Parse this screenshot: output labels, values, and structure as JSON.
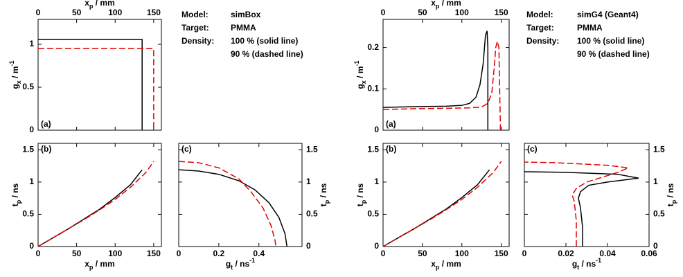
{
  "chart_data": [
    {
      "type": "line",
      "label": "(a)",
      "label_corner": "lower left",
      "xaxis_side": "top",
      "yaxis_side": "left",
      "xlabel": {
        "base": "x",
        "sub": "p",
        "rest": " / mm"
      },
      "ylabel": {
        "base": "g",
        "sub": "x",
        "rest": " / m",
        "sup": "-1"
      },
      "xlim": [
        0,
        160
      ],
      "xticks": [
        0,
        50,
        100,
        150
      ],
      "ylim": [
        0,
        1.29
      ],
      "yticks": [
        0,
        0.5,
        1
      ],
      "series": [
        {
          "color": "#000000",
          "dashed": false,
          "x": [
            0,
            135,
            135
          ],
          "values": [
            1.056,
            1.056,
            0
          ]
        },
        {
          "color": "#e00000",
          "dashed": true,
          "x": [
            0,
            150,
            150
          ],
          "values": [
            0.95,
            0.95,
            0
          ]
        }
      ]
    },
    {
      "type": "line",
      "label": "(b)",
      "label_corner": "upper left",
      "xaxis_side": "bottom",
      "yaxis_side": "left",
      "xlabel": {
        "base": "x",
        "sub": "p",
        "rest": " / mm"
      },
      "ylabel": {
        "base": "t",
        "sub": "p",
        "rest": " / ns"
      },
      "xlim": [
        0,
        160
      ],
      "xticks": [
        0,
        50,
        100,
        150
      ],
      "ylim": [
        0,
        1.6
      ],
      "yticks": [
        0,
        0.5,
        1,
        1.5
      ],
      "series": [
        {
          "color": "#000000",
          "dashed": false,
          "x": [
            0,
            20,
            40,
            60,
            80,
            100,
            120,
            135
          ],
          "values": [
            0,
            0.14,
            0.28,
            0.43,
            0.58,
            0.76,
            0.96,
            1.19
          ]
        },
        {
          "color": "#e00000",
          "dashed": true,
          "x": [
            0,
            20,
            40,
            60,
            80,
            100,
            120,
            140,
            150
          ],
          "values": [
            0,
            0.14,
            0.28,
            0.42,
            0.57,
            0.73,
            0.92,
            1.15,
            1.32
          ]
        }
      ]
    },
    {
      "type": "line",
      "label": "(c)",
      "label_corner": "upper left",
      "xaxis_side": "bottom",
      "yaxis_side": "right",
      "xlabel": {
        "base": "g",
        "sub": "t",
        "rest": " / ns",
        "sup": "-1"
      },
      "ylabel": {
        "base": "t",
        "sub": "p",
        "rest": " / ns"
      },
      "xlim": [
        0,
        0.615
      ],
      "xticks": [
        0,
        0.2,
        0.4
      ],
      "ylim": [
        0,
        1.6
      ],
      "yticks": [
        0,
        0.5,
        1,
        1.5
      ],
      "series": [
        {
          "color": "#000000",
          "dashed": false,
          "x": [
            0,
            0.1,
            0.2,
            0.3,
            0.38,
            0.45,
            0.5,
            0.53,
            0.54
          ],
          "values": [
            1.19,
            1.17,
            1.12,
            1.02,
            0.88,
            0.68,
            0.45,
            0.2,
            0
          ]
        },
        {
          "color": "#e00000",
          "dashed": true,
          "x": [
            0,
            0.1,
            0.2,
            0.3,
            0.36,
            0.42,
            0.46,
            0.48,
            0.485
          ],
          "values": [
            1.32,
            1.3,
            1.22,
            1.05,
            0.85,
            0.6,
            0.33,
            0.1,
            0
          ]
        }
      ]
    },
    {
      "type": "line",
      "label": "(a)",
      "label_corner": "lower left",
      "xaxis_side": "top",
      "yaxis_side": "left",
      "xlabel": {
        "base": "x",
        "sub": "p",
        "rest": " / mm"
      },
      "ylabel": {
        "base": "g",
        "sub": "x",
        "rest": " / m",
        "sup": "-1"
      },
      "xlim": [
        0,
        160
      ],
      "xticks": [
        0,
        50,
        100,
        150
      ],
      "ylim": [
        0,
        0.268
      ],
      "yticks": [
        0,
        0.1,
        0.2
      ],
      "series": [
        {
          "color": "#000000",
          "dashed": false,
          "x": [
            0,
            40,
            80,
            100,
            110,
            118,
            123,
            127,
            130,
            132,
            133,
            133
          ],
          "values": [
            0.055,
            0.057,
            0.058,
            0.06,
            0.065,
            0.08,
            0.11,
            0.16,
            0.23,
            0.24,
            0.2,
            0
          ]
        },
        {
          "color": "#e00000",
          "dashed": true,
          "x": [
            0,
            40,
            80,
            110,
            125,
            133,
            138,
            141,
            143,
            145,
            147,
            148,
            149
          ],
          "values": [
            0.05,
            0.052,
            0.053,
            0.054,
            0.056,
            0.065,
            0.09,
            0.15,
            0.2,
            0.215,
            0.2,
            0.1,
            0
          ]
        }
      ]
    },
    {
      "type": "line",
      "label": "(b)",
      "label_corner": "upper left",
      "xaxis_side": "bottom",
      "yaxis_side": "left",
      "xlabel": {
        "base": "x",
        "sub": "p",
        "rest": " / mm"
      },
      "ylabel": {
        "base": "t",
        "sub": "p",
        "rest": " / ns"
      },
      "xlim": [
        0,
        160
      ],
      "xticks": [
        0,
        50,
        100,
        150
      ],
      "ylim": [
        0,
        1.6
      ],
      "yticks": [
        0,
        0.5,
        1,
        1.5
      ],
      "series": [
        {
          "color": "#000000",
          "dashed": false,
          "x": [
            0,
            20,
            40,
            60,
            80,
            100,
            120,
            135
          ],
          "values": [
            0,
            0.14,
            0.28,
            0.43,
            0.58,
            0.76,
            0.96,
            1.19
          ]
        },
        {
          "color": "#e00000",
          "dashed": true,
          "x": [
            0,
            20,
            40,
            60,
            80,
            100,
            120,
            140,
            150
          ],
          "values": [
            0,
            0.14,
            0.28,
            0.42,
            0.57,
            0.73,
            0.92,
            1.15,
            1.32
          ]
        }
      ]
    },
    {
      "type": "line",
      "label": "(c)",
      "label_corner": "upper left",
      "xaxis_side": "bottom",
      "yaxis_side": "right",
      "xlabel": {
        "base": "g",
        "sub": "t",
        "rest": " / ns",
        "sup": "-1"
      },
      "ylabel": {
        "base": "t",
        "sub": "p",
        "rest": " / ns"
      },
      "xlim": [
        0,
        0.06
      ],
      "xticks": [
        0,
        0.02,
        0.04,
        0.06
      ],
      "ylim": [
        0,
        1.6
      ],
      "yticks": [
        0,
        0.5,
        1,
        1.5
      ],
      "series": [
        {
          "color": "#000000",
          "dashed": false,
          "x": [
            0.028,
            0.028,
            0.027,
            0.026,
            0.027,
            0.031,
            0.04,
            0.055,
            0.045,
            0.02,
            0
          ],
          "values": [
            0,
            0.3,
            0.6,
            0.75,
            0.85,
            0.95,
            1.0,
            1.06,
            1.12,
            1.15,
            1.16
          ]
        },
        {
          "color": "#e00000",
          "dashed": true,
          "x": [
            0.025,
            0.025,
            0.024,
            0.023,
            0.025,
            0.03,
            0.045,
            0.05,
            0.04,
            0.015,
            0
          ],
          "values": [
            0,
            0.4,
            0.7,
            0.8,
            0.9,
            1.0,
            1.15,
            1.22,
            1.26,
            1.3,
            1.31
          ]
        }
      ]
    }
  ],
  "info": [
    {
      "rows": [
        {
          "key": "Model:",
          "value": "simBox"
        },
        {
          "key": "Target:",
          "value": "PMMA"
        },
        {
          "key": "Density:",
          "value": "100 % (solid line)"
        },
        {
          "value": "90 % (dashed line)",
          "color": "#e00000"
        }
      ]
    },
    {
      "rows": [
        {
          "key": "Model:",
          "value": "simG4 (Geant4)"
        },
        {
          "key": "Target:",
          "value": "PMMA"
        },
        {
          "key": "Density:",
          "value": "100 % (solid line)"
        },
        {
          "value": "90 % (dashed line)",
          "color": "#e00000"
        }
      ]
    }
  ]
}
